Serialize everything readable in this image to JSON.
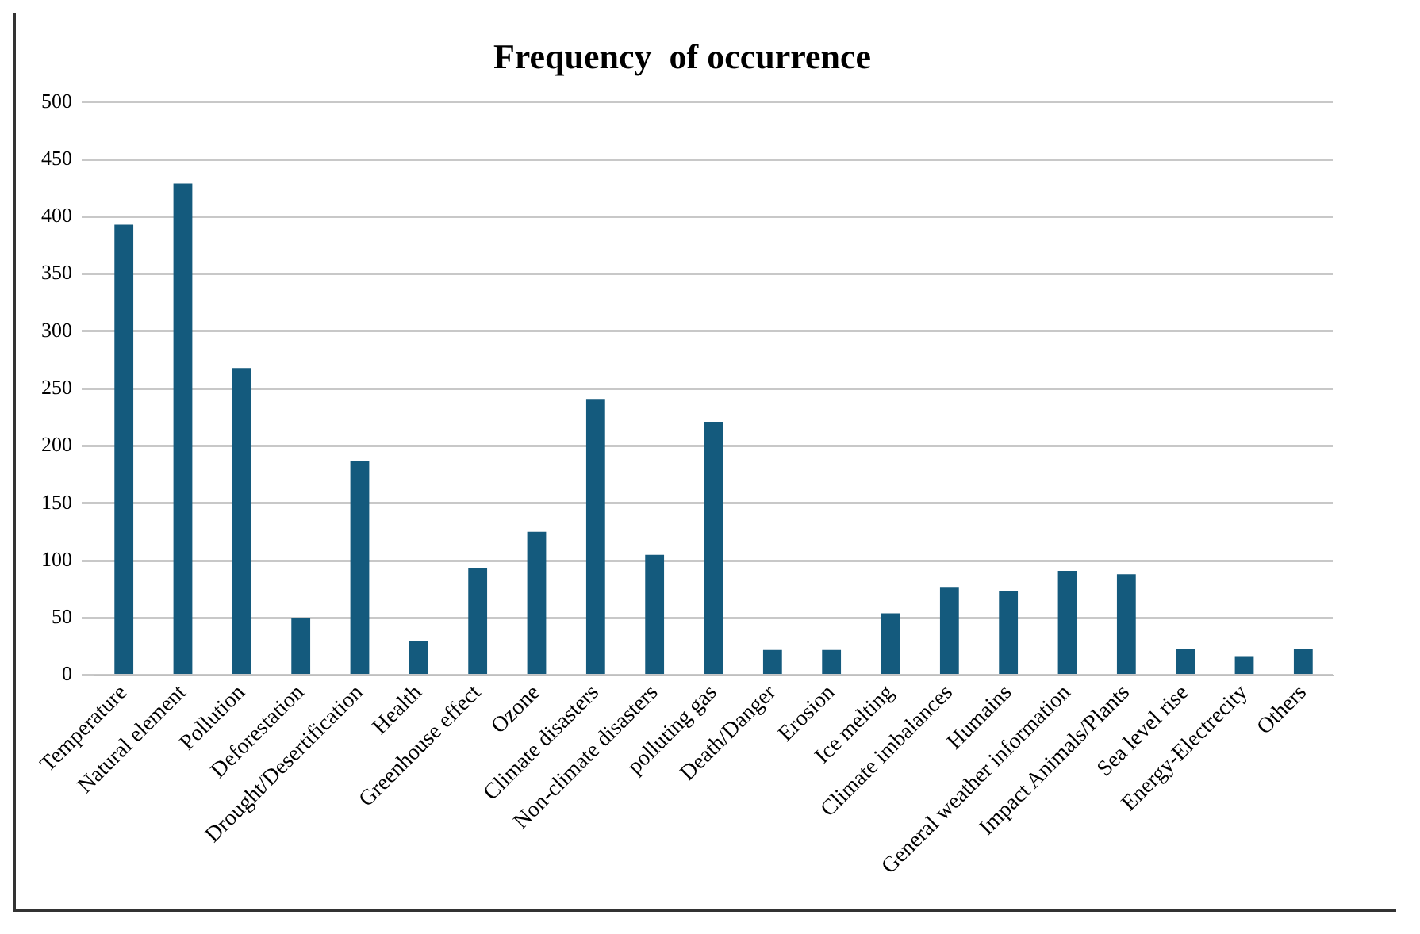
{
  "chart_data": {
    "type": "bar",
    "title": "Frequency  of occurrence",
    "categories": [
      "Temperature",
      "Natural element",
      "Pollution",
      "Deforestation",
      "Drought/Desertification",
      "Health",
      "Greenhouse effect",
      "Ozone",
      "Climate disasters",
      "Non-climate disasters",
      "polluting gas",
      "Death/Danger",
      "Erosion",
      "Ice melting",
      "Climate imbalances",
      "Humains",
      "General weather information",
      "Impact Animals/Plants",
      "Sea level rise",
      "Energy-Electrecity",
      "Others"
    ],
    "values": [
      393,
      429,
      268,
      50,
      187,
      30,
      93,
      125,
      241,
      105,
      221,
      22,
      22,
      54,
      77,
      73,
      91,
      88,
      23,
      16,
      23
    ],
    "color": "#145a7d",
    "ylim": [
      0,
      500
    ],
    "yticks": [
      0,
      50,
      100,
      150,
      200,
      250,
      300,
      350,
      400,
      450,
      500
    ],
    "grid": "y",
    "legend": false
  }
}
